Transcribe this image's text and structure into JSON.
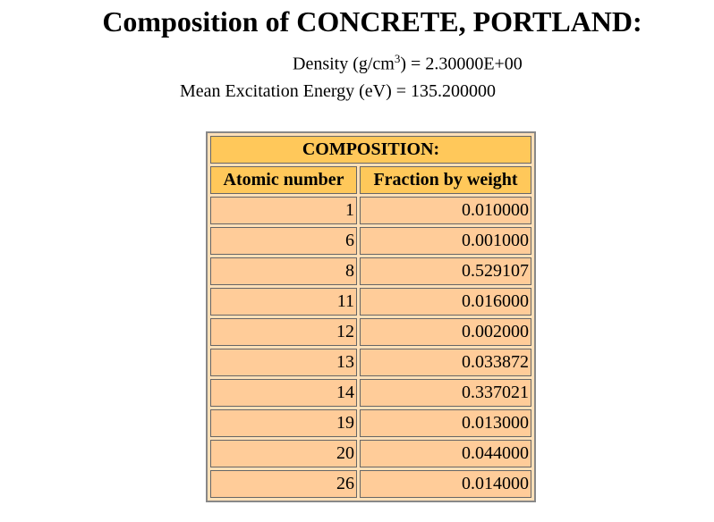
{
  "title": "Composition of CONCRETE, PORTLAND:",
  "density": {
    "prefix": "Density (g/cm",
    "exponent": "3",
    "suffix": ") = 2.30000E+00"
  },
  "mean_excitation": "Mean Excitation Energy (eV) = 135.200000",
  "table": {
    "caption": "COMPOSITION:",
    "headers": [
      "Atomic number",
      "Fraction by weight"
    ],
    "rows": [
      {
        "z": "1",
        "fraction": "0.010000"
      },
      {
        "z": "6",
        "fraction": "0.001000"
      },
      {
        "z": "8",
        "fraction": "0.529107"
      },
      {
        "z": "11",
        "fraction": "0.016000"
      },
      {
        "z": "12",
        "fraction": "0.002000"
      },
      {
        "z": "13",
        "fraction": "0.033872"
      },
      {
        "z": "14",
        "fraction": "0.337021"
      },
      {
        "z": "19",
        "fraction": "0.013000"
      },
      {
        "z": "20",
        "fraction": "0.044000"
      },
      {
        "z": "26",
        "fraction": "0.014000"
      }
    ]
  },
  "colors": {
    "header_bg": "#ffc85a",
    "cell_bg": "#ffcc99",
    "table_bg": "#ffe0b8"
  }
}
